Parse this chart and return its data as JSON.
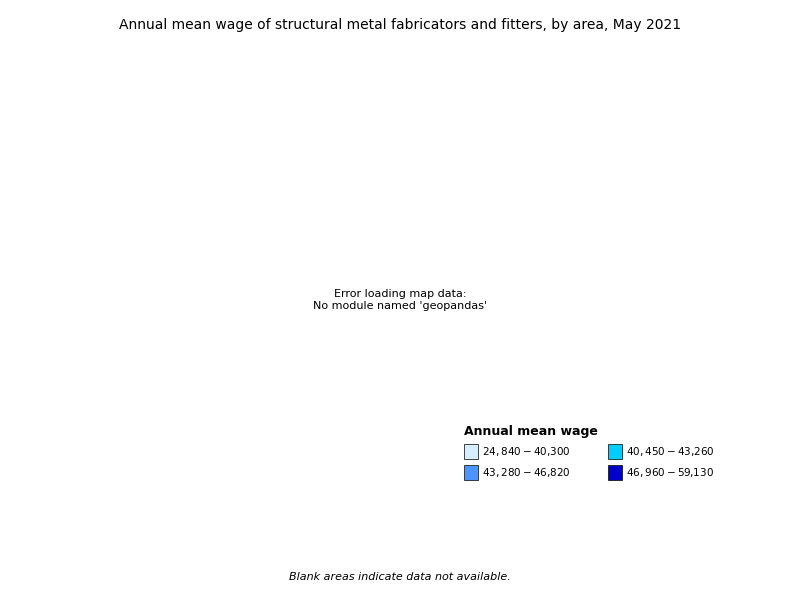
{
  "title": "Annual mean wage of structural metal fabricators and fitters, by area, May 2021",
  "legend_title": "Annual mean wage",
  "legend_items": [
    {
      "label": "$24,840 - $40,300",
      "color": "#d6eeff"
    },
    {
      "label": "$43,280 - $46,820",
      "color": "#4d94ff"
    },
    {
      "label": "$40,450 - $43,260",
      "color": "#00ccff"
    },
    {
      "label": "$46,960 - $59,130",
      "color": "#0000cc"
    }
  ],
  "blank_note": "Blank areas indicate data not available.",
  "colors": {
    "no_data": "#ffffff",
    "range1": "#d6eeff",
    "range2": "#00ccff",
    "range3": "#4d94ff",
    "range4": "#0000cc",
    "border": "#555555"
  },
  "figsize": [
    8.0,
    6.0
  ],
  "dpi": 100
}
